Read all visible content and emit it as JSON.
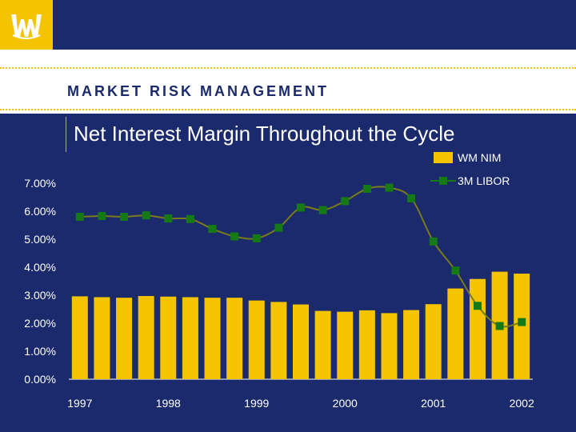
{
  "header": {
    "section_title": "MARKET RISK MANAGEMENT"
  },
  "colors": {
    "background": "#1a2a6c",
    "accent": "#f5c400",
    "libor": "#157a15",
    "libor_line": "#7a7a1a"
  },
  "chart_data": {
    "type": "bar",
    "title": "Net Interest Margin Throughout the Cycle",
    "xlabel": "",
    "ylabel": "",
    "ylim": [
      0,
      7
    ],
    "y_ticks": [
      "0.00%",
      "1.00%",
      "2.00%",
      "3.00%",
      "4.00%",
      "5.00%",
      "6.00%",
      "7.00%"
    ],
    "x_tick_labels": [
      {
        "label": "1997",
        "index": 0
      },
      {
        "label": "1998",
        "index": 4
      },
      {
        "label": "1999",
        "index": 8
      },
      {
        "label": "2000",
        "index": 12
      },
      {
        "label": "2001",
        "index": 16
      },
      {
        "label": "2002",
        "index": 20
      }
    ],
    "legend_position": "top-right",
    "grid": false,
    "series": [
      {
        "name": "WM NIM",
        "type": "bar",
        "color": "#f5c400",
        "values": [
          2.96,
          2.93,
          2.91,
          2.97,
          2.95,
          2.93,
          2.91,
          2.91,
          2.81,
          2.76,
          2.67,
          2.44,
          2.41,
          2.46,
          2.36,
          2.47,
          2.68,
          3.24,
          3.58,
          3.84,
          3.77
        ]
      },
      {
        "name": "3M LIBOR",
        "type": "line",
        "color": "#157a15",
        "values": [
          5.8,
          5.83,
          5.8,
          5.85,
          5.74,
          5.72,
          5.37,
          5.1,
          5.03,
          5.41,
          6.13,
          6.04,
          6.36,
          6.8,
          6.84,
          6.46,
          4.92,
          3.88,
          2.62,
          1.9,
          2.04
        ]
      }
    ]
  }
}
